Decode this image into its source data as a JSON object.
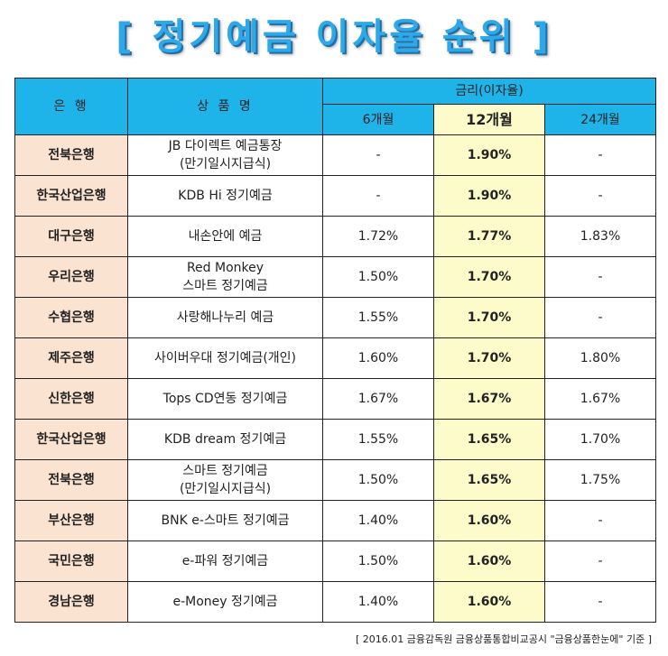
{
  "title": "[ 정기예금 이자율 순위 ]",
  "headers": {
    "bank": "은 행",
    "product": "상 품 명",
    "rate_group": "금리(이자율)",
    "m6": "6개월",
    "m12": "12개월",
    "m24": "24개월"
  },
  "rows": [
    {
      "bank": "전북은행",
      "product_line1": "JB 다이렉트 예금통장",
      "product_line2": "(만기일시지급식)",
      "m6": "-",
      "m12": "1.90%",
      "m24": "-"
    },
    {
      "bank": "한국산업은행",
      "product_line1": "KDB Hi 정기예금",
      "product_line2": "",
      "m6": "-",
      "m12": "1.90%",
      "m24": "-"
    },
    {
      "bank": "대구은행",
      "product_line1": "내손안에 예금",
      "product_line2": "",
      "m6": "1.72%",
      "m12": "1.77%",
      "m24": "1.83%"
    },
    {
      "bank": "우리은행",
      "product_line1": "Red Monkey",
      "product_line2": "스마트 정기예금",
      "m6": "1.50%",
      "m12": "1.70%",
      "m24": "-"
    },
    {
      "bank": "수협은행",
      "product_line1": "사랑해나누리 예금",
      "product_line2": "",
      "m6": "1.55%",
      "m12": "1.70%",
      "m24": "-"
    },
    {
      "bank": "제주은행",
      "product_line1": "사이버우대 정기예금(개인)",
      "product_line2": "",
      "m6": "1.60%",
      "m12": "1.70%",
      "m24": "1.80%"
    },
    {
      "bank": "신한은행",
      "product_line1": "Tops CD연동 정기예금",
      "product_line2": "",
      "m6": "1.67%",
      "m12": "1.67%",
      "m24": "1.67%"
    },
    {
      "bank": "한국산업은행",
      "product_line1": "KDB dream 정기예금",
      "product_line2": "",
      "m6": "1.55%",
      "m12": "1.65%",
      "m24": "1.70%"
    },
    {
      "bank": "전북은행",
      "product_line1": "스마트 정기예금",
      "product_line2": "(만기일시지급식)",
      "m6": "1.50%",
      "m12": "1.65%",
      "m24": "1.75%"
    },
    {
      "bank": "부산은행",
      "product_line1": "BNK e-스마트 정기예금",
      "product_line2": "",
      "m6": "1.40%",
      "m12": "1.60%",
      "m24": "-"
    },
    {
      "bank": "국민은행",
      "product_line1": "e-파워 정기예금",
      "product_line2": "",
      "m6": "1.50%",
      "m12": "1.60%",
      "m24": "-"
    },
    {
      "bank": "경남은행",
      "product_line1": "e-Money 정기예금",
      "product_line2": "",
      "m6": "1.40%",
      "m12": "1.60%",
      "m24": "-"
    }
  ],
  "footnote": "[ 2016.01 금융감독원 금융상품통합비교공시 \"금융상품한눈에\" 기준 ]",
  "colors": {
    "title": "#2fa8e8",
    "header_bg": "#1eb4ea",
    "bank_bg": "#fbe3d1",
    "highlight_bg": "#fdfbc9"
  }
}
